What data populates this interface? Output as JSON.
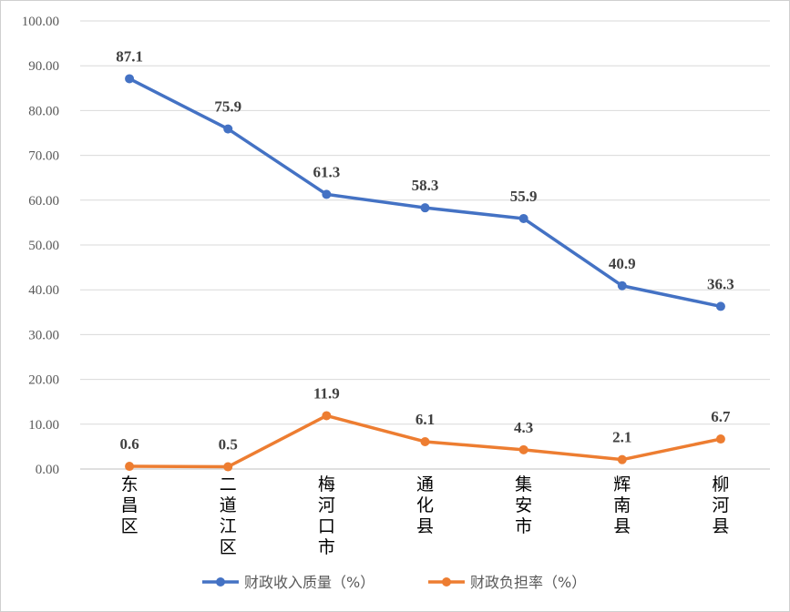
{
  "chart_data": {
    "type": "line",
    "categories": [
      "东昌区",
      "二道江区",
      "梅河口市",
      "通化县",
      "集安市",
      "辉南县",
      "柳河县"
    ],
    "series": [
      {
        "name": "财政收入质量（%）",
        "color": "#4472C4",
        "values": [
          87.1,
          75.9,
          61.3,
          58.3,
          55.9,
          40.9,
          36.3
        ],
        "labels": [
          "87.1",
          "75.9",
          "61.3",
          "58.3",
          "55.9",
          "40.9",
          "36.3"
        ]
      },
      {
        "name": "财政负担率（%）",
        "color": "#ED7D31",
        "values": [
          0.6,
          0.5,
          11.9,
          6.1,
          4.3,
          2.1,
          6.7
        ],
        "labels": [
          "0.6",
          "0.5",
          "11.9",
          "6.1",
          "4.3",
          "2.1",
          "6.7"
        ]
      }
    ],
    "yticks": [
      "0.00",
      "10.00",
      "20.00",
      "30.00",
      "40.00",
      "50.00",
      "60.00",
      "70.00",
      "80.00",
      "90.00",
      "100.00"
    ],
    "ylim": [
      0,
      100
    ],
    "grid": true,
    "legend": "bottom"
  }
}
